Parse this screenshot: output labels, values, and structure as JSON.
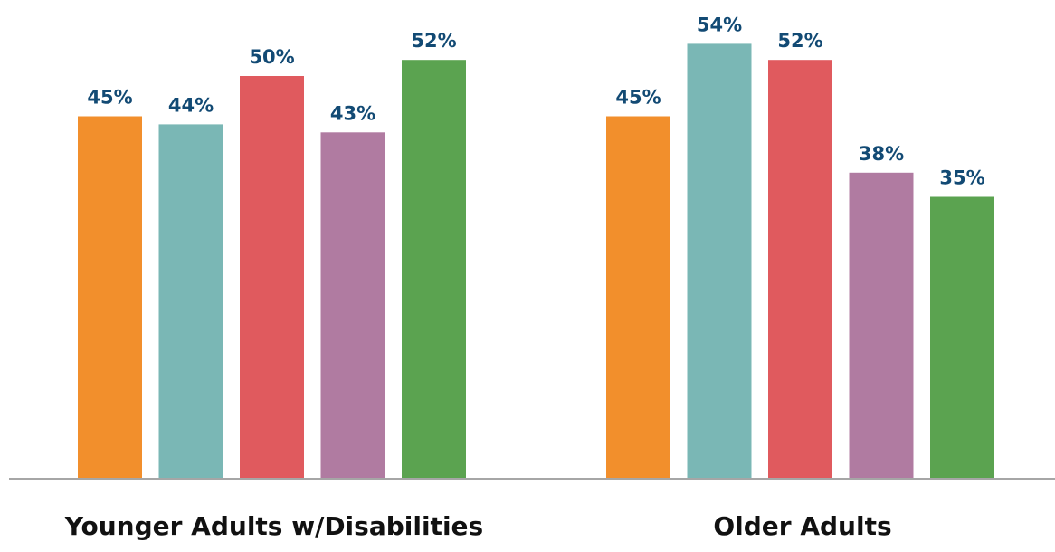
{
  "chart_data": {
    "type": "bar",
    "title": "",
    "xlabel": "",
    "ylabel": "",
    "ylim": [
      0,
      60
    ],
    "grid": false,
    "legend": "none",
    "categories": [
      "Younger Adults w/Disabilities",
      "Older Adults"
    ],
    "series": [
      {
        "values": [
          45,
          45
        ],
        "color": "#F28F2C"
      },
      {
        "values": [
          44,
          54
        ],
        "color": "#7AB7B5"
      },
      {
        "values": [
          50,
          52
        ],
        "color": "#E05A5E"
      },
      {
        "values": [
          43,
          38
        ],
        "color": "#B07BA1"
      },
      {
        "values": [
          52,
          35
        ],
        "color": "#5BA350"
      }
    ],
    "data_labels": [
      [
        "45%",
        "44%",
        "50%",
        "43%",
        "52%"
      ],
      [
        "45%",
        "54%",
        "52%",
        "38%",
        "35%"
      ]
    ],
    "label_color": "#124A74",
    "axis_color": "#A6A6A6"
  }
}
